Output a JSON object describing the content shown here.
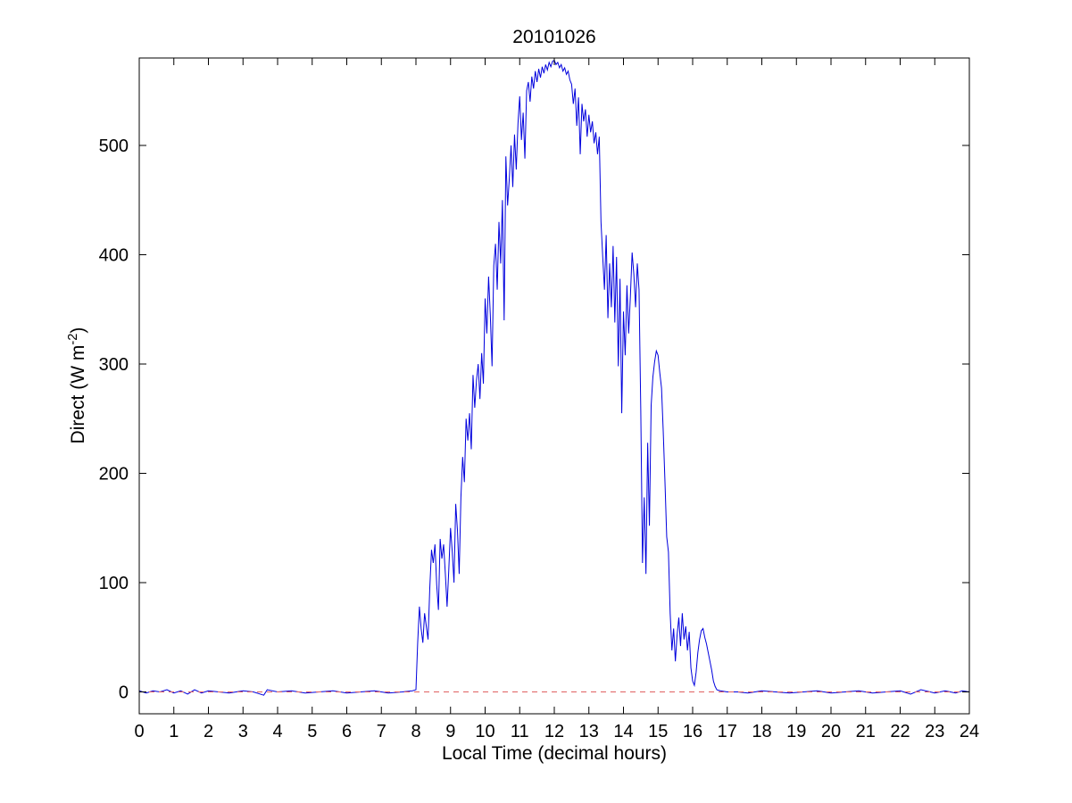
{
  "figure": {
    "title": "20101026",
    "xlabel": "Local Time (decimal hours)",
    "ylabel_pre": "Direct (W m",
    "ylabel_sup": "-2",
    "ylabel_post": ")"
  },
  "chart_data": {
    "type": "line",
    "title": "20101026",
    "xlabel": "Local Time (decimal hours)",
    "ylabel": "Direct (W m^-2)",
    "xlim": [
      0,
      24
    ],
    "ylim": [
      -20,
      580
    ],
    "xticks": [
      0,
      1,
      2,
      3,
      4,
      5,
      6,
      7,
      8,
      9,
      10,
      11,
      12,
      13,
      14,
      15,
      16,
      17,
      18,
      19,
      20,
      21,
      22,
      23,
      24
    ],
    "yticks": [
      0,
      100,
      200,
      300,
      400,
      500
    ],
    "grid": false,
    "legend": "none",
    "series": [
      {
        "name": "direct-irradiance-line",
        "color": "#0000dd",
        "style": "solid",
        "points": [
          [
            0,
            1
          ],
          [
            0.2,
            -1
          ],
          [
            0.4,
            1
          ],
          [
            0.6,
            0
          ],
          [
            0.8,
            2
          ],
          [
            1.0,
            -1
          ],
          [
            1.2,
            1
          ],
          [
            1.4,
            -2
          ],
          [
            1.6,
            2
          ],
          [
            1.8,
            -1
          ],
          [
            2.0,
            1
          ],
          [
            2.3,
            0
          ],
          [
            2.6,
            -1
          ],
          [
            3.0,
            1
          ],
          [
            3.3,
            0
          ],
          [
            3.6,
            -3
          ],
          [
            3.7,
            2
          ],
          [
            4.0,
            0
          ],
          [
            4.4,
            1
          ],
          [
            4.8,
            -1
          ],
          [
            5.2,
            0
          ],
          [
            5.6,
            1
          ],
          [
            6.0,
            -1
          ],
          [
            6.4,
            0
          ],
          [
            6.8,
            1
          ],
          [
            7.2,
            -1
          ],
          [
            7.6,
            0
          ],
          [
            7.9,
            1
          ],
          [
            8.0,
            2
          ],
          [
            8.05,
            45
          ],
          [
            8.1,
            78
          ],
          [
            8.15,
            58
          ],
          [
            8.2,
            45
          ],
          [
            8.25,
            72
          ],
          [
            8.3,
            60
          ],
          [
            8.35,
            48
          ],
          [
            8.4,
            95
          ],
          [
            8.45,
            130
          ],
          [
            8.5,
            118
          ],
          [
            8.55,
            135
          ],
          [
            8.6,
            98
          ],
          [
            8.65,
            75
          ],
          [
            8.7,
            140
          ],
          [
            8.75,
            122
          ],
          [
            8.8,
            135
          ],
          [
            8.85,
            108
          ],
          [
            8.9,
            78
          ],
          [
            8.95,
            112
          ],
          [
            9.0,
            150
          ],
          [
            9.05,
            128
          ],
          [
            9.1,
            100
          ],
          [
            9.15,
            172
          ],
          [
            9.2,
            148
          ],
          [
            9.25,
            108
          ],
          [
            9.3,
            178
          ],
          [
            9.35,
            215
          ],
          [
            9.4,
            192
          ],
          [
            9.45,
            250
          ],
          [
            9.5,
            230
          ],
          [
            9.55,
            255
          ],
          [
            9.6,
            222
          ],
          [
            9.65,
            290
          ],
          [
            9.7,
            260
          ],
          [
            9.75,
            285
          ],
          [
            9.8,
            300
          ],
          [
            9.85,
            268
          ],
          [
            9.9,
            310
          ],
          [
            9.95,
            282
          ],
          [
            10.0,
            360
          ],
          [
            10.05,
            328
          ],
          [
            10.1,
            380
          ],
          [
            10.15,
            345
          ],
          [
            10.2,
            298
          ],
          [
            10.25,
            390
          ],
          [
            10.3,
            410
          ],
          [
            10.35,
            368
          ],
          [
            10.4,
            430
          ],
          [
            10.45,
            392
          ],
          [
            10.5,
            450
          ],
          [
            10.55,
            340
          ],
          [
            10.6,
            490
          ],
          [
            10.65,
            445
          ],
          [
            10.7,
            470
          ],
          [
            10.75,
            500
          ],
          [
            10.8,
            462
          ],
          [
            10.85,
            510
          ],
          [
            10.9,
            478
          ],
          [
            10.95,
            520
          ],
          [
            11.0,
            545
          ],
          [
            11.05,
            505
          ],
          [
            11.1,
            530
          ],
          [
            11.15,
            488
          ],
          [
            11.2,
            550
          ],
          [
            11.25,
            558
          ],
          [
            11.3,
            540
          ],
          [
            11.35,
            563
          ],
          [
            11.4,
            552
          ],
          [
            11.45,
            568
          ],
          [
            11.5,
            558
          ],
          [
            11.55,
            570
          ],
          [
            11.6,
            562
          ],
          [
            11.65,
            572
          ],
          [
            11.7,
            566
          ],
          [
            11.75,
            574
          ],
          [
            11.8,
            569
          ],
          [
            11.85,
            576
          ],
          [
            11.9,
            572
          ],
          [
            11.95,
            577
          ],
          [
            12.0,
            578
          ],
          [
            12.05,
            574
          ],
          [
            12.1,
            576
          ],
          [
            12.15,
            571
          ],
          [
            12.2,
            574
          ],
          [
            12.25,
            568
          ],
          [
            12.3,
            571
          ],
          [
            12.35,
            565
          ],
          [
            12.4,
            568
          ],
          [
            12.45,
            560
          ],
          [
            12.5,
            556
          ],
          [
            12.55,
            538
          ],
          [
            12.6,
            552
          ],
          [
            12.65,
            518
          ],
          [
            12.7,
            544
          ],
          [
            12.75,
            492
          ],
          [
            12.8,
            538
          ],
          [
            12.85,
            522
          ],
          [
            12.9,
            533
          ],
          [
            12.95,
            508
          ],
          [
            13.0,
            528
          ],
          [
            13.05,
            512
          ],
          [
            13.1,
            522
          ],
          [
            13.15,
            502
          ],
          [
            13.2,
            512
          ],
          [
            13.25,
            492
          ],
          [
            13.3,
            508
          ],
          [
            13.35,
            430
          ],
          [
            13.4,
            398
          ],
          [
            13.45,
            368
          ],
          [
            13.5,
            418
          ],
          [
            13.55,
            342
          ],
          [
            13.6,
            392
          ],
          [
            13.65,
            352
          ],
          [
            13.7,
            408
          ],
          [
            13.75,
            338
          ],
          [
            13.8,
            398
          ],
          [
            13.85,
            298
          ],
          [
            13.9,
            378
          ],
          [
            13.95,
            255
          ],
          [
            14.0,
            348
          ],
          [
            14.05,
            308
          ],
          [
            14.1,
            372
          ],
          [
            14.15,
            328
          ],
          [
            14.2,
            362
          ],
          [
            14.25,
            402
          ],
          [
            14.3,
            382
          ],
          [
            14.35,
            352
          ],
          [
            14.4,
            392
          ],
          [
            14.45,
            368
          ],
          [
            14.5,
            258
          ],
          [
            14.55,
            118
          ],
          [
            14.6,
            178
          ],
          [
            14.65,
            108
          ],
          [
            14.7,
            228
          ],
          [
            14.75,
            152
          ],
          [
            14.8,
            262
          ],
          [
            14.85,
            288
          ],
          [
            14.9,
            302
          ],
          [
            14.95,
            312
          ],
          [
            15.0,
            308
          ],
          [
            15.05,
            292
          ],
          [
            15.1,
            278
          ],
          [
            15.15,
            238
          ],
          [
            15.2,
            192
          ],
          [
            15.25,
            142
          ],
          [
            15.3,
            128
          ],
          [
            15.35,
            72
          ],
          [
            15.4,
            38
          ],
          [
            15.45,
            58
          ],
          [
            15.5,
            28
          ],
          [
            15.55,
            52
          ],
          [
            15.6,
            68
          ],
          [
            15.65,
            42
          ],
          [
            15.7,
            72
          ],
          [
            15.75,
            48
          ],
          [
            15.8,
            60
          ],
          [
            15.85,
            38
          ],
          [
            15.9,
            55
          ],
          [
            15.95,
            22
          ],
          [
            16.0,
            10
          ],
          [
            16.05,
            6
          ],
          [
            16.1,
            18
          ],
          [
            16.15,
            36
          ],
          [
            16.2,
            48
          ],
          [
            16.25,
            56
          ],
          [
            16.3,
            58
          ],
          [
            16.35,
            50
          ],
          [
            16.4,
            44
          ],
          [
            16.45,
            36
          ],
          [
            16.5,
            28
          ],
          [
            16.55,
            20
          ],
          [
            16.6,
            10
          ],
          [
            16.65,
            5
          ],
          [
            16.7,
            2
          ],
          [
            16.8,
            1
          ],
          [
            17.0,
            0
          ],
          [
            17.3,
            0
          ],
          [
            17.6,
            -1
          ],
          [
            18.0,
            1
          ],
          [
            18.4,
            0
          ],
          [
            18.8,
            -1
          ],
          [
            19.2,
            0
          ],
          [
            19.6,
            1
          ],
          [
            20.0,
            -1
          ],
          [
            20.4,
            0
          ],
          [
            20.8,
            1
          ],
          [
            21.2,
            -1
          ],
          [
            21.6,
            0
          ],
          [
            22.0,
            1
          ],
          [
            22.3,
            -2
          ],
          [
            22.6,
            2
          ],
          [
            23.0,
            -1
          ],
          [
            23.3,
            1
          ],
          [
            23.6,
            -1
          ],
          [
            23.8,
            1
          ],
          [
            24.0,
            0
          ]
        ]
      },
      {
        "name": "zero-reference-line",
        "color": "#e06060",
        "style": "dashed",
        "points": [
          [
            0,
            0
          ],
          [
            24,
            0
          ]
        ]
      }
    ]
  }
}
